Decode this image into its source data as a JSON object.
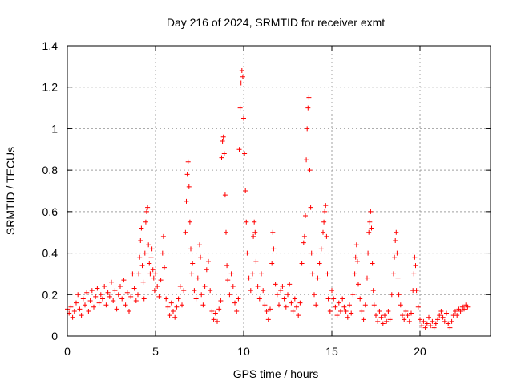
{
  "chart_data": {
    "type": "scatter",
    "title": "Day 216 of 2024, SRMTID for receiver exmt",
    "xlabel": "GPS time / hours",
    "ylabel": "SRMTID / TECUs",
    "xlim": [
      0,
      24
    ],
    "ylim": [
      0,
      1.4
    ],
    "xticks": [
      0,
      5,
      10,
      15,
      20
    ],
    "xtick_labels": [
      "0",
      "5",
      "10",
      "15",
      "20"
    ],
    "yticks": [
      0,
      0.2,
      0.4,
      0.6,
      0.8,
      1,
      1.2,
      1.4
    ],
    "ytick_labels": [
      "0",
      "0.2",
      "0.4",
      "0.6",
      "0.8",
      "1",
      "1.2",
      "1.4"
    ],
    "grid": true,
    "marker": "+",
    "series_color": "#ff0000",
    "series": [
      {
        "name": "SRMTID",
        "points": [
          [
            0.0,
            0.13
          ],
          [
            0.1,
            0.11
          ],
          [
            0.2,
            0.14
          ],
          [
            0.3,
            0.09
          ],
          [
            0.4,
            0.12
          ],
          [
            0.5,
            0.16
          ],
          [
            0.6,
            0.2
          ],
          [
            0.7,
            0.13
          ],
          [
            0.8,
            0.1
          ],
          [
            0.9,
            0.18
          ],
          [
            1.0,
            0.15
          ],
          [
            1.1,
            0.21
          ],
          [
            1.2,
            0.12
          ],
          [
            1.3,
            0.17
          ],
          [
            1.4,
            0.22
          ],
          [
            1.5,
            0.14
          ],
          [
            1.6,
            0.19
          ],
          [
            1.7,
            0.23
          ],
          [
            1.8,
            0.16
          ],
          [
            1.9,
            0.2
          ],
          [
            2.0,
            0.18
          ],
          [
            2.1,
            0.24
          ],
          [
            2.2,
            0.15
          ],
          [
            2.3,
            0.21
          ],
          [
            2.4,
            0.19
          ],
          [
            2.5,
            0.26
          ],
          [
            2.6,
            0.17
          ],
          [
            2.7,
            0.22
          ],
          [
            2.8,
            0.13
          ],
          [
            2.9,
            0.2
          ],
          [
            3.0,
            0.24
          ],
          [
            3.1,
            0.18
          ],
          [
            3.2,
            0.27
          ],
          [
            3.3,
            0.15
          ],
          [
            3.4,
            0.21
          ],
          [
            3.5,
            0.12
          ],
          [
            3.6,
            0.19
          ],
          [
            3.7,
            0.3
          ],
          [
            3.8,
            0.23
          ],
          [
            3.9,
            0.17
          ],
          [
            4.0,
            0.2
          ],
          [
            4.05,
            0.3
          ],
          [
            4.1,
            0.38
          ],
          [
            4.15,
            0.46
          ],
          [
            4.2,
            0.52
          ],
          [
            4.25,
            0.34
          ],
          [
            4.3,
            0.26
          ],
          [
            4.35,
            0.18
          ],
          [
            4.4,
            0.4
          ],
          [
            4.45,
            0.55
          ],
          [
            4.5,
            0.6
          ],
          [
            4.55,
            0.62
          ],
          [
            4.6,
            0.44
          ],
          [
            4.65,
            0.35
          ],
          [
            4.7,
            0.3
          ],
          [
            4.75,
            0.38
          ],
          [
            4.8,
            0.42
          ],
          [
            4.85,
            0.32
          ],
          [
            4.9,
            0.28
          ],
          [
            4.95,
            0.22
          ],
          [
            5.0,
            0.3
          ],
          [
            5.1,
            0.24
          ],
          [
            5.2,
            0.19
          ],
          [
            5.3,
            0.27
          ],
          [
            5.4,
            0.4
          ],
          [
            5.45,
            0.48
          ],
          [
            5.5,
            0.33
          ],
          [
            5.6,
            0.18
          ],
          [
            5.7,
            0.14
          ],
          [
            5.8,
            0.1
          ],
          [
            5.9,
            0.16
          ],
          [
            6.0,
            0.12
          ],
          [
            6.1,
            0.09
          ],
          [
            6.2,
            0.14
          ],
          [
            6.3,
            0.18
          ],
          [
            6.4,
            0.24
          ],
          [
            6.5,
            0.15
          ],
          [
            6.6,
            0.22
          ],
          [
            6.7,
            0.5
          ],
          [
            6.75,
            0.65
          ],
          [
            6.8,
            0.78
          ],
          [
            6.85,
            0.84
          ],
          [
            6.9,
            0.72
          ],
          [
            6.95,
            0.55
          ],
          [
            7.0,
            0.42
          ],
          [
            7.05,
            0.3
          ],
          [
            7.1,
            0.35
          ],
          [
            7.2,
            0.22
          ],
          [
            7.3,
            0.18
          ],
          [
            7.4,
            0.28
          ],
          [
            7.5,
            0.44
          ],
          [
            7.55,
            0.38
          ],
          [
            7.6,
            0.2
          ],
          [
            7.7,
            0.15
          ],
          [
            7.8,
            0.24
          ],
          [
            7.9,
            0.32
          ],
          [
            8.0,
            0.36
          ],
          [
            8.1,
            0.22
          ],
          [
            8.2,
            0.12
          ],
          [
            8.3,
            0.08
          ],
          [
            8.4,
            0.11
          ],
          [
            8.5,
            0.07
          ],
          [
            8.6,
            0.13
          ],
          [
            8.7,
            0.17
          ],
          [
            8.75,
            0.86
          ],
          [
            8.8,
            0.94
          ],
          [
            8.85,
            0.96
          ],
          [
            8.9,
            0.88
          ],
          [
            8.95,
            0.68
          ],
          [
            9.0,
            0.5
          ],
          [
            9.05,
            0.34
          ],
          [
            9.1,
            0.27
          ],
          [
            9.2,
            0.2
          ],
          [
            9.3,
            0.3
          ],
          [
            9.4,
            0.24
          ],
          [
            9.5,
            0.16
          ],
          [
            9.6,
            0.12
          ],
          [
            9.7,
            0.18
          ],
          [
            9.75,
            0.9
          ],
          [
            9.8,
            1.1
          ],
          [
            9.85,
            1.22
          ],
          [
            9.9,
            1.28
          ],
          [
            9.95,
            1.25
          ],
          [
            10.0,
            1.05
          ],
          [
            10.05,
            0.88
          ],
          [
            10.1,
            0.7
          ],
          [
            10.15,
            0.55
          ],
          [
            10.2,
            0.4
          ],
          [
            10.3,
            0.28
          ],
          [
            10.4,
            0.22
          ],
          [
            10.5,
            0.3
          ],
          [
            10.55,
            0.48
          ],
          [
            10.6,
            0.55
          ],
          [
            10.65,
            0.5
          ],
          [
            10.7,
            0.36
          ],
          [
            10.8,
            0.24
          ],
          [
            10.9,
            0.18
          ],
          [
            11.0,
            0.3
          ],
          [
            11.1,
            0.22
          ],
          [
            11.2,
            0.15
          ],
          [
            11.3,
            0.12
          ],
          [
            11.4,
            0.08
          ],
          [
            11.5,
            0.13
          ],
          [
            11.6,
            0.35
          ],
          [
            11.65,
            0.5
          ],
          [
            11.7,
            0.42
          ],
          [
            11.8,
            0.25
          ],
          [
            11.9,
            0.2
          ],
          [
            12.0,
            0.15
          ],
          [
            12.1,
            0.22
          ],
          [
            12.2,
            0.24
          ],
          [
            12.3,
            0.18
          ],
          [
            12.4,
            0.14
          ],
          [
            12.5,
            0.2
          ],
          [
            12.6,
            0.25
          ],
          [
            12.7,
            0.16
          ],
          [
            12.8,
            0.12
          ],
          [
            12.9,
            0.18
          ],
          [
            13.0,
            0.14
          ],
          [
            13.1,
            0.1
          ],
          [
            13.2,
            0.16
          ],
          [
            13.3,
            0.35
          ],
          [
            13.4,
            0.45
          ],
          [
            13.45,
            0.48
          ],
          [
            13.5,
            0.58
          ],
          [
            13.55,
            0.85
          ],
          [
            13.6,
            1.0
          ],
          [
            13.65,
            1.1
          ],
          [
            13.7,
            1.15
          ],
          [
            13.75,
            0.8
          ],
          [
            13.8,
            0.62
          ],
          [
            13.85,
            0.4
          ],
          [
            13.9,
            0.3
          ],
          [
            14.0,
            0.2
          ],
          [
            14.1,
            0.15
          ],
          [
            14.2,
            0.28
          ],
          [
            14.3,
            0.35
          ],
          [
            14.4,
            0.42
          ],
          [
            14.5,
            0.5
          ],
          [
            14.55,
            0.55
          ],
          [
            14.6,
            0.6
          ],
          [
            14.65,
            0.63
          ],
          [
            14.7,
            0.48
          ],
          [
            14.75,
            0.3
          ],
          [
            14.8,
            0.18
          ],
          [
            14.9,
            0.12
          ],
          [
            15.0,
            0.22
          ],
          [
            15.1,
            0.18
          ],
          [
            15.2,
            0.14
          ],
          [
            15.3,
            0.1
          ],
          [
            15.4,
            0.16
          ],
          [
            15.5,
            0.12
          ],
          [
            15.6,
            0.18
          ],
          [
            15.7,
            0.14
          ],
          [
            15.8,
            0.12
          ],
          [
            15.9,
            0.09
          ],
          [
            16.0,
            0.15
          ],
          [
            16.1,
            0.11
          ],
          [
            16.2,
            0.2
          ],
          [
            16.3,
            0.3
          ],
          [
            16.35,
            0.38
          ],
          [
            16.4,
            0.44
          ],
          [
            16.45,
            0.36
          ],
          [
            16.5,
            0.25
          ],
          [
            16.6,
            0.18
          ],
          [
            16.7,
            0.12
          ],
          [
            16.8,
            0.08
          ],
          [
            16.9,
            0.15
          ],
          [
            17.0,
            0.28
          ],
          [
            17.05,
            0.4
          ],
          [
            17.1,
            0.5
          ],
          [
            17.15,
            0.55
          ],
          [
            17.2,
            0.6
          ],
          [
            17.25,
            0.52
          ],
          [
            17.3,
            0.35
          ],
          [
            17.35,
            0.22
          ],
          [
            17.4,
            0.15
          ],
          [
            17.5,
            0.1
          ],
          [
            17.6,
            0.07
          ],
          [
            17.7,
            0.12
          ],
          [
            17.8,
            0.09
          ],
          [
            17.9,
            0.06
          ],
          [
            18.0,
            0.1
          ],
          [
            18.1,
            0.07
          ],
          [
            18.2,
            0.12
          ],
          [
            18.3,
            0.08
          ],
          [
            18.4,
            0.2
          ],
          [
            18.5,
            0.3
          ],
          [
            18.55,
            0.38
          ],
          [
            18.6,
            0.46
          ],
          [
            18.65,
            0.5
          ],
          [
            18.7,
            0.4
          ],
          [
            18.75,
            0.28
          ],
          [
            18.8,
            0.2
          ],
          [
            18.9,
            0.15
          ],
          [
            19.0,
            0.1
          ],
          [
            19.1,
            0.08
          ],
          [
            19.2,
            0.12
          ],
          [
            19.3,
            0.1
          ],
          [
            19.4,
            0.07
          ],
          [
            19.5,
            0.11
          ],
          [
            19.6,
            0.22
          ],
          [
            19.65,
            0.3
          ],
          [
            19.7,
            0.38
          ],
          [
            19.75,
            0.34
          ],
          [
            19.8,
            0.22
          ],
          [
            19.9,
            0.14
          ],
          [
            20.0,
            0.08
          ],
          [
            20.1,
            0.05
          ],
          [
            20.2,
            0.07
          ],
          [
            20.3,
            0.04
          ],
          [
            20.4,
            0.06
          ],
          [
            20.5,
            0.09
          ],
          [
            20.6,
            0.05
          ],
          [
            20.7,
            0.07
          ],
          [
            20.8,
            0.04
          ],
          [
            20.9,
            0.06
          ],
          [
            21.0,
            0.08
          ],
          [
            21.1,
            0.1
          ],
          [
            21.2,
            0.12
          ],
          [
            21.3,
            0.09
          ],
          [
            21.4,
            0.07
          ],
          [
            21.5,
            0.11
          ],
          [
            21.6,
            0.06
          ],
          [
            21.7,
            0.04
          ],
          [
            21.8,
            0.07
          ],
          [
            21.9,
            0.1
          ],
          [
            22.0,
            0.12
          ],
          [
            22.1,
            0.1
          ],
          [
            22.2,
            0.13
          ],
          [
            22.3,
            0.12
          ],
          [
            22.4,
            0.14
          ],
          [
            22.5,
            0.13
          ],
          [
            22.6,
            0.15
          ],
          [
            22.7,
            0.14
          ]
        ]
      }
    ]
  }
}
